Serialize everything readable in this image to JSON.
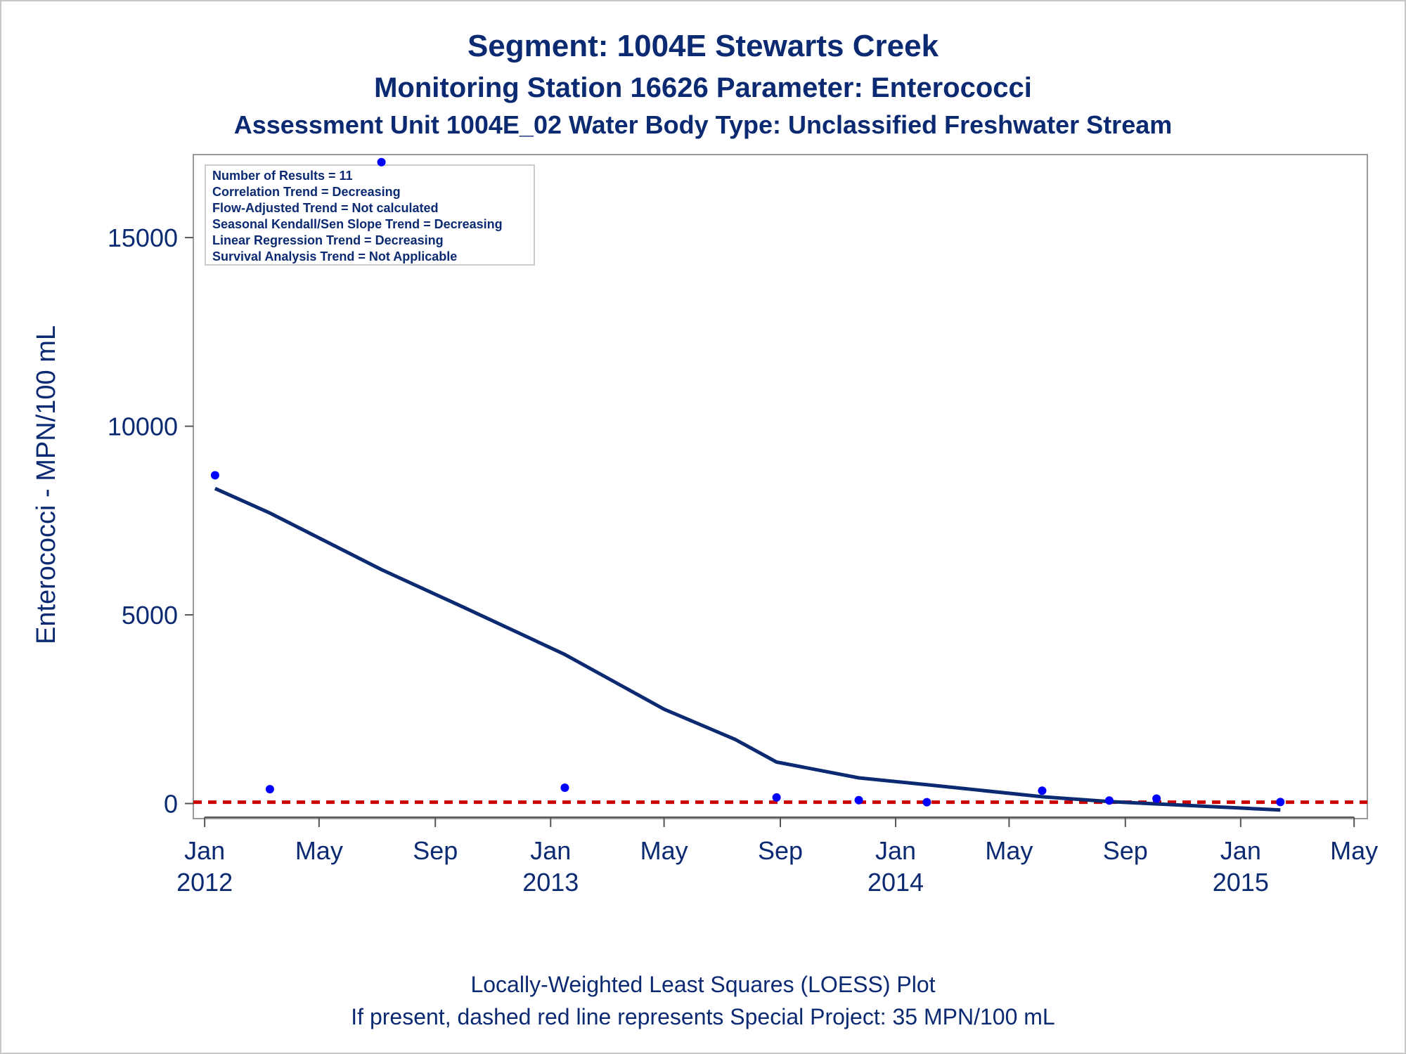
{
  "chart_data": {
    "type": "scatter",
    "title": "Segment: 1004E  Stewarts Creek",
    "subtitle": "Monitoring Station 16626 Parameter: Enterococci",
    "subtitle2": "Assessment Unit 1004E_02   Water Body Type: Unclassified Freshwater Stream",
    "xlabel": "",
    "ylabel": "Enterococci - MPN/100 mL",
    "ylim": [
      -400,
      17200
    ],
    "xlim": [
      "2011-12-20",
      "2015-05-15"
    ],
    "y_ticks": [
      0,
      5000,
      10000,
      15000
    ],
    "y_tick_labels": [
      "0",
      "5000",
      "10000",
      "15000"
    ],
    "x_ticks": [
      "2012-01-01",
      "2012-05-01",
      "2012-09-01",
      "2013-01-01",
      "2013-05-01",
      "2013-09-01",
      "2014-01-01",
      "2014-05-01",
      "2014-09-01",
      "2015-01-01",
      "2015-05-01"
    ],
    "x_tick_labels": [
      {
        "month": "Jan",
        "year": "2012"
      },
      {
        "month": "May",
        "year": ""
      },
      {
        "month": "Sep",
        "year": ""
      },
      {
        "month": "Jan",
        "year": "2013"
      },
      {
        "month": "May",
        "year": ""
      },
      {
        "month": "Sep",
        "year": ""
      },
      {
        "month": "Jan",
        "year": "2014"
      },
      {
        "month": "May",
        "year": ""
      },
      {
        "month": "Sep",
        "year": ""
      },
      {
        "month": "Jan",
        "year": "2015"
      },
      {
        "month": "May",
        "year": ""
      }
    ],
    "series": [
      {
        "type": "scatter",
        "color": "#0000ff",
        "points": [
          {
            "x": "2012-01-12",
            "y": 8700
          },
          {
            "x": "2012-03-10",
            "y": 380
          },
          {
            "x": "2012-07-06",
            "y": 17000
          },
          {
            "x": "2013-01-16",
            "y": 420
          },
          {
            "x": "2013-08-28",
            "y": 160
          },
          {
            "x": "2013-11-23",
            "y": 90
          },
          {
            "x": "2014-02-03",
            "y": 35
          },
          {
            "x": "2014-06-05",
            "y": 340
          },
          {
            "x": "2014-08-15",
            "y": 80
          },
          {
            "x": "2014-10-04",
            "y": 130
          },
          {
            "x": "2015-02-12",
            "y": 40
          }
        ]
      },
      {
        "type": "line",
        "color": "#0b2a72",
        "points": [
          {
            "x": "2012-01-12",
            "y": 8350
          },
          {
            "x": "2012-03-10",
            "y": 7700
          },
          {
            "x": "2012-07-06",
            "y": 6200
          },
          {
            "x": "2012-10-01",
            "y": 5200
          },
          {
            "x": "2013-01-16",
            "y": 3950
          },
          {
            "x": "2013-05-01",
            "y": 2500
          },
          {
            "x": "2013-07-15",
            "y": 1700
          },
          {
            "x": "2013-08-28",
            "y": 1100
          },
          {
            "x": "2013-11-23",
            "y": 680
          },
          {
            "x": "2014-02-03",
            "y": 500
          },
          {
            "x": "2014-06-05",
            "y": 180
          },
          {
            "x": "2014-08-15",
            "y": 50
          },
          {
            "x": "2014-10-04",
            "y": -10
          },
          {
            "x": "2015-02-12",
            "y": -170
          }
        ]
      }
    ],
    "reference_line": {
      "y": 35,
      "color": "#cc0000",
      "style": "dashed"
    },
    "stats_box": [
      "Number of Results = 11",
      "Correlation Trend = Decreasing",
      "Flow-Adjusted Trend = Not calculated",
      "Seasonal Kendall/Sen Slope Trend = Decreasing",
      "Linear Regression Trend = Decreasing",
      "Survival Analysis Trend = Not Applicable"
    ],
    "footnotes": [
      "Locally-Weighted Least Squares (LOESS) Plot",
      "If present, dashed red line represents Special Project: 35 MPN/100 mL"
    ],
    "grid": false,
    "legend": "none"
  }
}
